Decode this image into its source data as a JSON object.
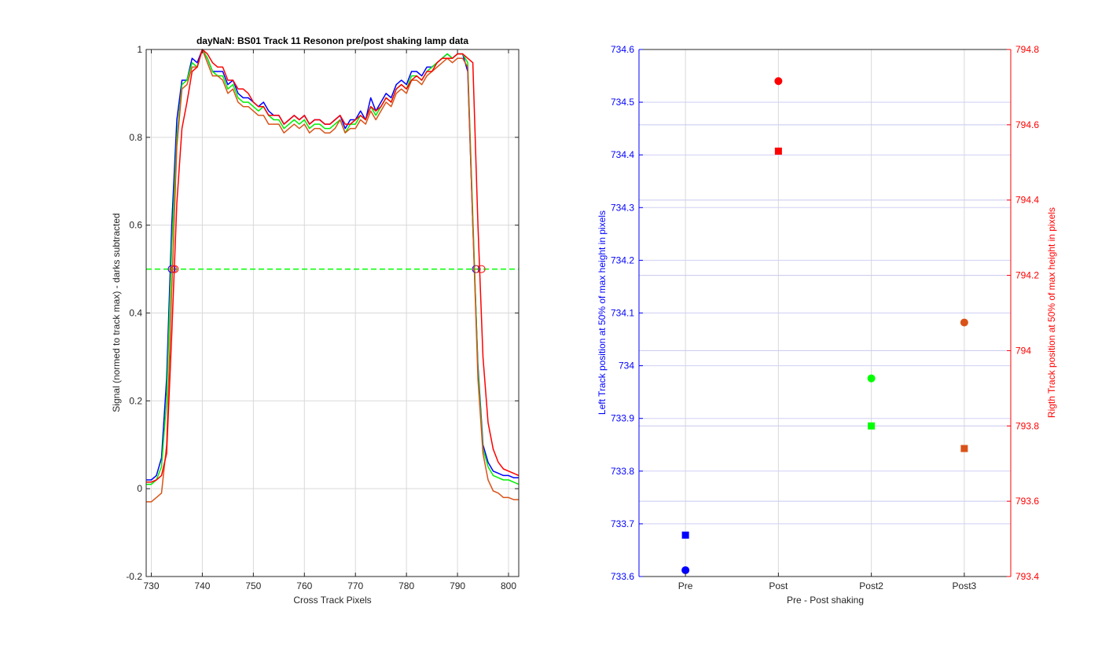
{
  "chart_data": [
    {
      "type": "line",
      "title": "dayNaN: BS01  Track 11 Resonon pre/post shaking lamp data",
      "xlabel": "Cross Track Pixels",
      "ylabel": "Signal (normed to track max) - darks subtracted",
      "xlim": [
        729,
        802
      ],
      "ylim": [
        -0.2,
        1
      ],
      "xticks": [
        730,
        740,
        750,
        760,
        770,
        780,
        790,
        800
      ],
      "yticks": [
        -0.2,
        0,
        0.2,
        0.4,
        0.6,
        0.8,
        1
      ],
      "ytick_labels": [
        "-0.2",
        "0",
        "0.2",
        "0.4",
        "0.6",
        "0.8",
        "1"
      ],
      "grid": true,
      "threshold": {
        "y": 0.5,
        "color": "#00ff00",
        "style": "dashed"
      },
      "series": [
        {
          "color": "#0000ff",
          "x": [
            729,
            730,
            731,
            732,
            733,
            734,
            735,
            736,
            737,
            738,
            739,
            740,
            741,
            742,
            743,
            744,
            745,
            746,
            747,
            748,
            749,
            750,
            751,
            752,
            753,
            754,
            755,
            756,
            757,
            758,
            759,
            760,
            761,
            762,
            763,
            764,
            765,
            766,
            767,
            768,
            769,
            770,
            771,
            772,
            773,
            774,
            775,
            776,
            777,
            778,
            779,
            780,
            781,
            782,
            783,
            784,
            785,
            786,
            787,
            788,
            789,
            790,
            791,
            792,
            793,
            794,
            795,
            796,
            797,
            798,
            799,
            800,
            801,
            802
          ],
          "y": [
            0.02,
            0.02,
            0.03,
            0.07,
            0.25,
            0.6,
            0.84,
            0.93,
            0.93,
            0.98,
            0.97,
            1.0,
            0.98,
            0.95,
            0.95,
            0.95,
            0.92,
            0.93,
            0.9,
            0.89,
            0.89,
            0.88,
            0.87,
            0.88,
            0.86,
            0.85,
            0.85,
            0.83,
            0.84,
            0.85,
            0.84,
            0.85,
            0.83,
            0.84,
            0.84,
            0.83,
            0.83,
            0.84,
            0.85,
            0.82,
            0.84,
            0.84,
            0.86,
            0.84,
            0.89,
            0.86,
            0.88,
            0.9,
            0.89,
            0.92,
            0.93,
            0.92,
            0.95,
            0.95,
            0.94,
            0.96,
            0.96,
            0.97,
            0.98,
            0.99,
            0.98,
            0.99,
            0.99,
            0.95,
            0.6,
            0.28,
            0.1,
            0.06,
            0.04,
            0.035,
            0.03,
            0.03,
            0.025,
            0.025
          ]
        },
        {
          "color": "#00ee00",
          "x": [
            729,
            730,
            731,
            732,
            733,
            734,
            735,
            736,
            737,
            738,
            739,
            740,
            741,
            742,
            743,
            744,
            745,
            746,
            747,
            748,
            749,
            750,
            751,
            752,
            753,
            754,
            755,
            756,
            757,
            758,
            759,
            760,
            761,
            762,
            763,
            764,
            765,
            766,
            767,
            768,
            769,
            770,
            771,
            772,
            773,
            774,
            775,
            776,
            777,
            778,
            779,
            780,
            781,
            782,
            783,
            784,
            785,
            786,
            787,
            788,
            789,
            790,
            791,
            792,
            793,
            794,
            795,
            796,
            797,
            798,
            799,
            800,
            801,
            802
          ],
          "y": [
            0.01,
            0.01,
            0.02,
            0.05,
            0.2,
            0.55,
            0.8,
            0.92,
            0.93,
            0.97,
            0.96,
            1.0,
            0.98,
            0.95,
            0.94,
            0.94,
            0.91,
            0.92,
            0.89,
            0.88,
            0.88,
            0.87,
            0.86,
            0.87,
            0.85,
            0.84,
            0.84,
            0.82,
            0.83,
            0.84,
            0.83,
            0.84,
            0.82,
            0.83,
            0.83,
            0.82,
            0.82,
            0.83,
            0.84,
            0.81,
            0.83,
            0.83,
            0.85,
            0.84,
            0.87,
            0.85,
            0.87,
            0.89,
            0.88,
            0.91,
            0.92,
            0.91,
            0.94,
            0.94,
            0.93,
            0.95,
            0.96,
            0.97,
            0.98,
            0.99,
            0.98,
            0.99,
            0.99,
            0.97,
            0.62,
            0.27,
            0.09,
            0.05,
            0.03,
            0.025,
            0.02,
            0.02,
            0.015,
            0.01
          ]
        },
        {
          "color": "#d95319",
          "x": [
            729,
            730,
            731,
            732,
            733,
            734,
            735,
            736,
            737,
            738,
            739,
            740,
            741,
            742,
            743,
            744,
            745,
            746,
            747,
            748,
            749,
            750,
            751,
            752,
            753,
            754,
            755,
            756,
            757,
            758,
            759,
            760,
            761,
            762,
            763,
            764,
            765,
            766,
            767,
            768,
            769,
            770,
            771,
            772,
            773,
            774,
            775,
            776,
            777,
            778,
            779,
            780,
            781,
            782,
            783,
            784,
            785,
            786,
            787,
            788,
            789,
            790,
            791,
            792,
            793,
            794,
            795,
            796,
            797,
            798,
            799,
            800,
            801,
            802
          ],
          "y": [
            -0.03,
            -0.03,
            -0.02,
            -0.01,
            0.1,
            0.45,
            0.78,
            0.91,
            0.92,
            0.96,
            0.96,
            1.0,
            0.97,
            0.94,
            0.94,
            0.93,
            0.9,
            0.91,
            0.88,
            0.87,
            0.87,
            0.86,
            0.85,
            0.85,
            0.83,
            0.83,
            0.83,
            0.81,
            0.82,
            0.83,
            0.82,
            0.83,
            0.81,
            0.82,
            0.82,
            0.81,
            0.81,
            0.82,
            0.84,
            0.81,
            0.82,
            0.82,
            0.84,
            0.83,
            0.86,
            0.84,
            0.86,
            0.88,
            0.87,
            0.9,
            0.91,
            0.9,
            0.93,
            0.93,
            0.92,
            0.94,
            0.95,
            0.96,
            0.97,
            0.98,
            0.97,
            0.98,
            0.98,
            0.96,
            0.6,
            0.25,
            0.08,
            0.02,
            -0.005,
            -0.01,
            -0.02,
            -0.02,
            -0.025,
            -0.025
          ]
        },
        {
          "color": "#ff0000",
          "x": [
            729,
            730,
            731,
            732,
            733,
            734,
            735,
            736,
            737,
            738,
            739,
            740,
            741,
            742,
            743,
            744,
            745,
            746,
            747,
            748,
            749,
            750,
            751,
            752,
            753,
            754,
            755,
            756,
            757,
            758,
            759,
            760,
            761,
            762,
            763,
            764,
            765,
            766,
            767,
            768,
            769,
            770,
            771,
            772,
            773,
            774,
            775,
            776,
            777,
            778,
            779,
            780,
            781,
            782,
            783,
            784,
            785,
            786,
            787,
            788,
            789,
            790,
            791,
            792,
            793,
            794,
            795,
            796,
            797,
            798,
            799,
            800,
            801,
            802
          ],
          "y": [
            0.015,
            0.015,
            0.02,
            0.03,
            0.08,
            0.35,
            0.65,
            0.82,
            0.88,
            0.95,
            0.96,
            1.0,
            0.99,
            0.97,
            0.96,
            0.96,
            0.93,
            0.93,
            0.91,
            0.91,
            0.9,
            0.88,
            0.87,
            0.87,
            0.85,
            0.85,
            0.85,
            0.83,
            0.84,
            0.85,
            0.84,
            0.85,
            0.83,
            0.84,
            0.84,
            0.83,
            0.83,
            0.84,
            0.85,
            0.83,
            0.83,
            0.84,
            0.85,
            0.84,
            0.87,
            0.86,
            0.87,
            0.89,
            0.88,
            0.91,
            0.92,
            0.91,
            0.93,
            0.94,
            0.93,
            0.95,
            0.95,
            0.97,
            0.98,
            0.98,
            0.98,
            0.99,
            0.99,
            0.98,
            0.97,
            0.6,
            0.3,
            0.15,
            0.09,
            0.06,
            0.045,
            0.04,
            0.035,
            0.03
          ]
        }
      ],
      "markers": [
        {
          "x": 734.0,
          "y": 0.5,
          "color": "#0000ff"
        },
        {
          "x": 734.3,
          "y": 0.5,
          "color": "#d95319"
        },
        {
          "x": 734.6,
          "y": 0.5,
          "color": "#ff0000"
        },
        {
          "x": 793.6,
          "y": 0.5,
          "color": "#0000ff"
        },
        {
          "x": 793.8,
          "y": 0.5,
          "color": "#d95319"
        },
        {
          "x": 794.7,
          "y": 0.5,
          "color": "#ff0000"
        }
      ]
    },
    {
      "type": "scatter",
      "xlabel": "Pre - Post shaking",
      "categories": [
        "Pre",
        "Post",
        "Post2",
        "Post3"
      ],
      "ylabel_left": "Left Track position at 50% of max height in pixels",
      "ylabel_right": "Rigth Track position at 50% of max height in pixels",
      "ylim_left": [
        733.6,
        734.6
      ],
      "yticks_left": [
        733.6,
        733.7,
        733.8,
        733.9,
        734,
        734.1,
        734.2,
        734.3,
        734.4,
        734.5,
        734.6
      ],
      "ytick_labels_left": [
        "733.6",
        "733.7",
        "733.8",
        "733.9",
        "734",
        "734.1",
        "734.2",
        "734.3",
        "734.4",
        "734.5",
        "734.6"
      ],
      "ylim_right": [
        793.4,
        794.8
      ],
      "yticks_right": [
        793.4,
        793.6,
        793.8,
        794,
        794.2,
        794.4,
        794.6,
        794.8
      ],
      "ytick_labels_right": [
        "793.4",
        "793.6",
        "793.8",
        "794",
        "794.2",
        "794.4",
        "794.6",
        "794.8"
      ],
      "left_axis_color": "#0000ff",
      "right_axis_color": "#ff0000",
      "grid": true,
      "left_points": [
        {
          "category": "Pre",
          "y": 733.612,
          "color": "#0000ff"
        },
        {
          "category": "Post",
          "y": 734.54,
          "color": "#ff0000"
        },
        {
          "category": "Post2",
          "y": 733.976,
          "color": "#00ff00"
        },
        {
          "category": "Post3",
          "y": 734.082,
          "color": "#d95319"
        }
      ],
      "right_points": [
        {
          "category": "Pre",
          "y": 793.51,
          "color": "#0000ff"
        },
        {
          "category": "Post",
          "y": 794.53,
          "color": "#ff0000"
        },
        {
          "category": "Post2",
          "y": 793.8,
          "color": "#00ff00"
        },
        {
          "category": "Post3",
          "y": 793.74,
          "color": "#d95319"
        }
      ]
    }
  ]
}
